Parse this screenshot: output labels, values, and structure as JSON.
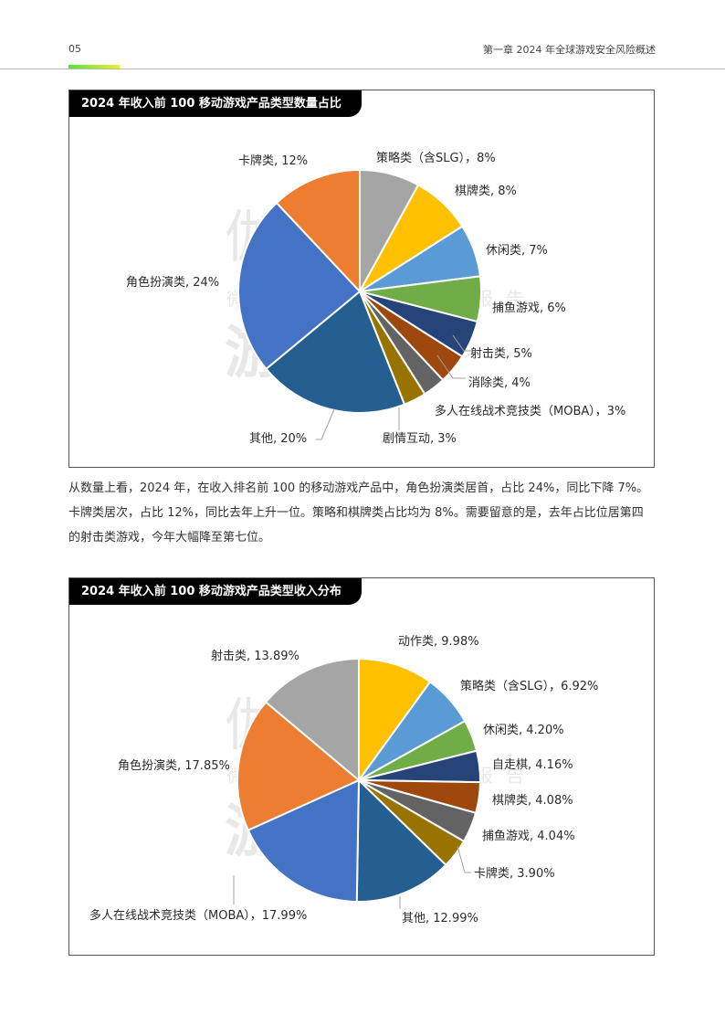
{
  "header": {
    "page_number": "05",
    "chapter_title": "第一章  2024 年全球游戏安全风险概述"
  },
  "watermark": {
    "line1": "伽马数据",
    "line2": "微信号：游戏产业报告",
    "line3": "游戏工委"
  },
  "body_text": {
    "lines": [
      "从数量上看，2024 年，在收入排名前 100 的移动游戏产品中，角色扮演类居首，占比 24%，同比下降 7%。",
      "卡牌类居次，占比 12%，同比去年上升一位。策略和棋牌类占比均为 8%。需要留意的是，去年占比位居第四",
      "的射击类游戏，今年大幅降至第七位。"
    ]
  },
  "chart_data": [
    {
      "type": "pie",
      "title": "2024 年收入前 100 移动游戏产品类型数量占比",
      "labels": [
        "策略类（含SLG）",
        "棋牌类",
        "休闲类",
        "捕鱼游戏",
        "射击类",
        "消除类",
        "多人在线战术竞技类（MOBA）",
        "剧情互动",
        "其他",
        "角色扮演类",
        "卡牌类"
      ],
      "values": [
        8,
        8,
        7,
        6,
        5,
        4,
        3,
        3,
        20,
        24,
        12
      ],
      "unit": "%",
      "colors": [
        "#a5a5a5",
        "#ffc000",
        "#5b9bd5",
        "#70ad47",
        "#264478",
        "#9e480e",
        "#636363",
        "#997300",
        "#255e91",
        "#4472c4",
        "#ed7d31"
      ],
      "display_labels": [
        "策略类（含SLG），8%",
        "棋牌类, 8%",
        "休闲类, 7%",
        "捕鱼游戏, 6%",
        "射击类, 5%",
        "消除类, 4%",
        "多人在线战术竞技类（MOBA），3%",
        "剧情互动, 3%",
        "其他, 20%",
        "角色扮演类, 24%",
        "卡牌类, 12%"
      ],
      "start_angle_deg": 0,
      "direction": "clockwise",
      "legend": "none (data labels with leader lines)"
    },
    {
      "type": "pie",
      "title": "2024 年收入前 100 移动游戏产品类型收入分布",
      "labels": [
        "动作类",
        "策略类（含SLG）",
        "休闲类",
        "自走棋",
        "棋牌类",
        "捕鱼游戏",
        "卡牌类",
        "其他",
        "多人在线战术竞技类（MOBA）",
        "角色扮演类",
        "射击类"
      ],
      "values": [
        9.98,
        6.92,
        4.2,
        4.16,
        4.08,
        4.04,
        3.9,
        12.99,
        17.99,
        17.85,
        13.89
      ],
      "unit": "%",
      "colors": [
        "#ffc000",
        "#5b9bd5",
        "#70ad47",
        "#264478",
        "#9e480e",
        "#636363",
        "#997300",
        "#255e91",
        "#4472c4",
        "#ed7d31",
        "#a5a5a5"
      ],
      "display_labels": [
        "动作类, 9.98%",
        "策略类（含SLG），6.92%",
        "休闲类, 4.20%",
        "自走棋, 4.16%",
        "棋牌类, 4.08%",
        "捕鱼游戏, 4.04%",
        "卡牌类, 3.90%",
        "其他, 12.99%",
        "多人在线战术竞技类（MOBA），17.99%",
        "角色扮演类, 17.85%",
        "射击类, 13.89%"
      ],
      "start_angle_deg": 0,
      "direction": "clockwise",
      "legend": "none (data labels with leader lines)"
    }
  ]
}
